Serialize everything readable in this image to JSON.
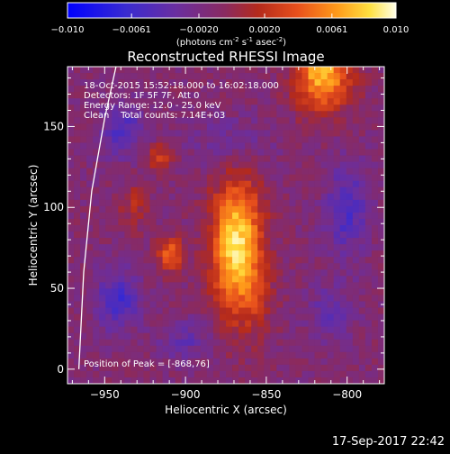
{
  "colorbar": {
    "ticks": [
      "-0.010",
      "-0.0061",
      "-0.0020",
      "0.0020",
      "0.0061",
      "0.010"
    ],
    "units_text": "(photons cm",
    "units_sup1": "-2",
    "units_mid": " s",
    "units_sup2": "-1",
    "units_mid2": " asec",
    "units_sup3": "-2",
    "units_end": ")",
    "range": [
      -0.01,
      0.01
    ],
    "colors": [
      "#0000ff",
      "#5b2bb4",
      "#8c3c8c",
      "#b43c28",
      "#e8501c",
      "#ff9a1a",
      "#ffff40",
      "#ffffe8"
    ]
  },
  "title": "Reconstructed RHESSI Image",
  "info": {
    "line1": "18-Oct-2015 15:52:18.000 to 16:02:18.000",
    "line2": "Detectors: 1F 5F 7F, Att 0",
    "line3": "Energy Range: 12.0 - 25.0 keV",
    "line4": "Clean    Total counts: 7.14E+03"
  },
  "peak_label": "Position of Peak = [-868,76]",
  "footer_date": "17-Sep-2017 22:42",
  "chart_data": {
    "type": "heatmap",
    "xlabel": "Heliocentric X (arcsec)",
    "ylabel": "Heliocentric Y (arcsec)",
    "xlim": [
      -973,
      -777
    ],
    "ylim": [
      -9,
      187
    ],
    "x_ticks": [
      -950,
      -900,
      -850,
      -800
    ],
    "y_ticks": [
      0,
      50,
      100,
      150
    ],
    "x_tick_labels": [
      "−950",
      "−900",
      "−850",
      "−800"
    ],
    "y_tick_labels": [
      "0",
      "50",
      "100",
      "150"
    ],
    "peak": [
      -868,
      76
    ],
    "sources": [
      {
        "x": -868,
        "y": 76,
        "sx": 11,
        "sy": 29,
        "amp": 0.01
      },
      {
        "x": -909,
        "y": 71,
        "sx": 6,
        "sy": 7,
        "amp": 0.006
      },
      {
        "x": -855,
        "y": 40,
        "sx": 8,
        "sy": 14,
        "amp": 0.0015
      },
      {
        "x": -815,
        "y": 182,
        "sx": 12,
        "sy": 16,
        "amp": 0.0085
      },
      {
        "x": -916,
        "y": 130,
        "sx": 6,
        "sy": 6,
        "amp": 0.004
      },
      {
        "x": -932,
        "y": 102,
        "sx": 6,
        "sy": 10,
        "amp": 0.0025
      },
      {
        "x": -942,
        "y": 43,
        "sx": 9,
        "sy": 13,
        "amp": -0.0045
      },
      {
        "x": -939,
        "y": 148,
        "sx": 9,
        "sy": 12,
        "amp": -0.004
      },
      {
        "x": -800,
        "y": 98,
        "sx": 9,
        "sy": 20,
        "amp": -0.004
      },
      {
        "x": -900,
        "y": 18,
        "sx": 12,
        "sy": 9,
        "amp": -0.0025
      },
      {
        "x": -810,
        "y": 35,
        "sx": 10,
        "sy": 12,
        "amp": -0.0025
      },
      {
        "x": -872,
        "y": 140,
        "sx": 18,
        "sy": 12,
        "amp": -0.002
      }
    ],
    "limb_curve": [
      [
        -966,
        0
      ],
      [
        -963,
        60
      ],
      [
        -958,
        110
      ],
      [
        -950,
        155
      ],
      [
        -943,
        187
      ]
    ]
  }
}
